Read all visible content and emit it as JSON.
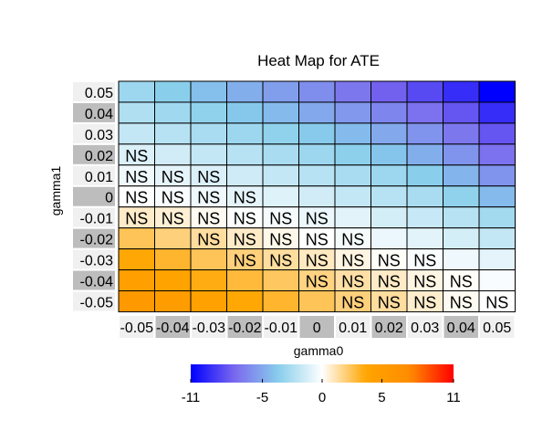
{
  "chart_data": {
    "type": "heatmap",
    "title": "Heat Map for ATE",
    "xlabel": "gamma0",
    "ylabel": "gamma1",
    "x_ticks": [
      "-0.05",
      "-0.04",
      "-0.03",
      "-0.02",
      "-0.01",
      "0",
      "0.01",
      "0.02",
      "0.03",
      "0.04",
      "0.05"
    ],
    "y_ticks": [
      "0.05",
      "0.04",
      "0.03",
      "0.02",
      "0.01",
      "0",
      "-0.01",
      "-0.02",
      "-0.03",
      "-0.04",
      "-0.05"
    ],
    "x_highlight": [
      "-0.04",
      "-0.02",
      "0",
      "0.02",
      "0.04"
    ],
    "y_highlight": [
      "0.04",
      "0.02",
      "0",
      "-0.02",
      "-0.04"
    ],
    "colorbar": {
      "min": -11,
      "max": 11,
      "ticks": [
        "-11",
        "-5",
        "0",
        "5",
        "11"
      ]
    },
    "cell_label": "NS",
    "values": [
      [
        -3.0,
        -3.6,
        -4.2,
        -4.8,
        -5.4,
        -6.0,
        -6.8,
        -7.6,
        -8.4,
        -9.4,
        -11.0
      ],
      [
        -2.4,
        -2.9,
        -3.4,
        -3.9,
        -4.4,
        -5.0,
        -5.6,
        -6.3,
        -7.0,
        -8.0,
        -9.4
      ],
      [
        -1.8,
        -2.2,
        -2.6,
        -3.0,
        -3.4,
        -3.8,
        -4.4,
        -5.0,
        -5.8,
        -6.8,
        -8.0
      ],
      [
        -1.1,
        -1.4,
        -1.8,
        -2.2,
        -2.6,
        -3.0,
        -3.5,
        -4.0,
        -4.8,
        -5.8,
        -7.0
      ],
      [
        -0.5,
        -0.8,
        -1.1,
        -1.5,
        -1.8,
        -2.2,
        -2.6,
        -3.0,
        -3.6,
        -4.6,
        -5.8
      ],
      [
        0.0,
        -0.2,
        -0.5,
        -0.8,
        -1.0,
        -1.4,
        -1.8,
        -2.2,
        -2.6,
        -3.4,
        -4.4
      ],
      [
        0.8,
        0.6,
        0.2,
        -0.1,
        -0.3,
        -0.6,
        -0.9,
        -1.3,
        -1.7,
        -2.2,
        -2.8
      ],
      [
        2.4,
        1.9,
        1.4,
        0.8,
        0.3,
        0.0,
        -0.3,
        -0.6,
        -0.9,
        -1.3,
        -1.8
      ],
      [
        3.6,
        3.0,
        2.4,
        1.9,
        1.4,
        0.9,
        0.4,
        0.1,
        -0.2,
        -0.5,
        -0.8
      ],
      [
        4.6,
        4.0,
        3.4,
        2.8,
        2.3,
        1.8,
        1.3,
        0.8,
        0.4,
        0.1,
        -0.2
      ],
      [
        5.4,
        4.8,
        4.2,
        3.6,
        3.0,
        2.4,
        1.9,
        1.4,
        0.7,
        0.2,
        0.0
      ]
    ],
    "ns_mask": [
      [
        0,
        0,
        0,
        0,
        0,
        0,
        0,
        0,
        0,
        0,
        0
      ],
      [
        0,
        0,
        0,
        0,
        0,
        0,
        0,
        0,
        0,
        0,
        0
      ],
      [
        0,
        0,
        0,
        0,
        0,
        0,
        0,
        0,
        0,
        0,
        0
      ],
      [
        1,
        0,
        0,
        0,
        0,
        0,
        0,
        0,
        0,
        0,
        0
      ],
      [
        1,
        1,
        1,
        0,
        0,
        0,
        0,
        0,
        0,
        0,
        0
      ],
      [
        1,
        1,
        1,
        1,
        0,
        0,
        0,
        0,
        0,
        0,
        0
      ],
      [
        1,
        1,
        1,
        1,
        1,
        1,
        0,
        0,
        0,
        0,
        0
      ],
      [
        0,
        0,
        1,
        1,
        1,
        1,
        1,
        0,
        0,
        0,
        0
      ],
      [
        0,
        0,
        0,
        1,
        1,
        1,
        1,
        1,
        1,
        0,
        0
      ],
      [
        0,
        0,
        0,
        0,
        0,
        1,
        1,
        1,
        1,
        1,
        0
      ],
      [
        0,
        0,
        0,
        0,
        0,
        0,
        1,
        1,
        1,
        1,
        1
      ]
    ],
    "colors": {
      "scale": [
        "#0000ff",
        "#7b68ee",
        "#87ceeb",
        "#ffffff",
        "#ffa500",
        "#ff8c00",
        "#ff0000"
      ],
      "highlight_bg": "#bdbdbd",
      "tick_bg": "#f0f0f0",
      "grid_line": "#000000"
    }
  }
}
